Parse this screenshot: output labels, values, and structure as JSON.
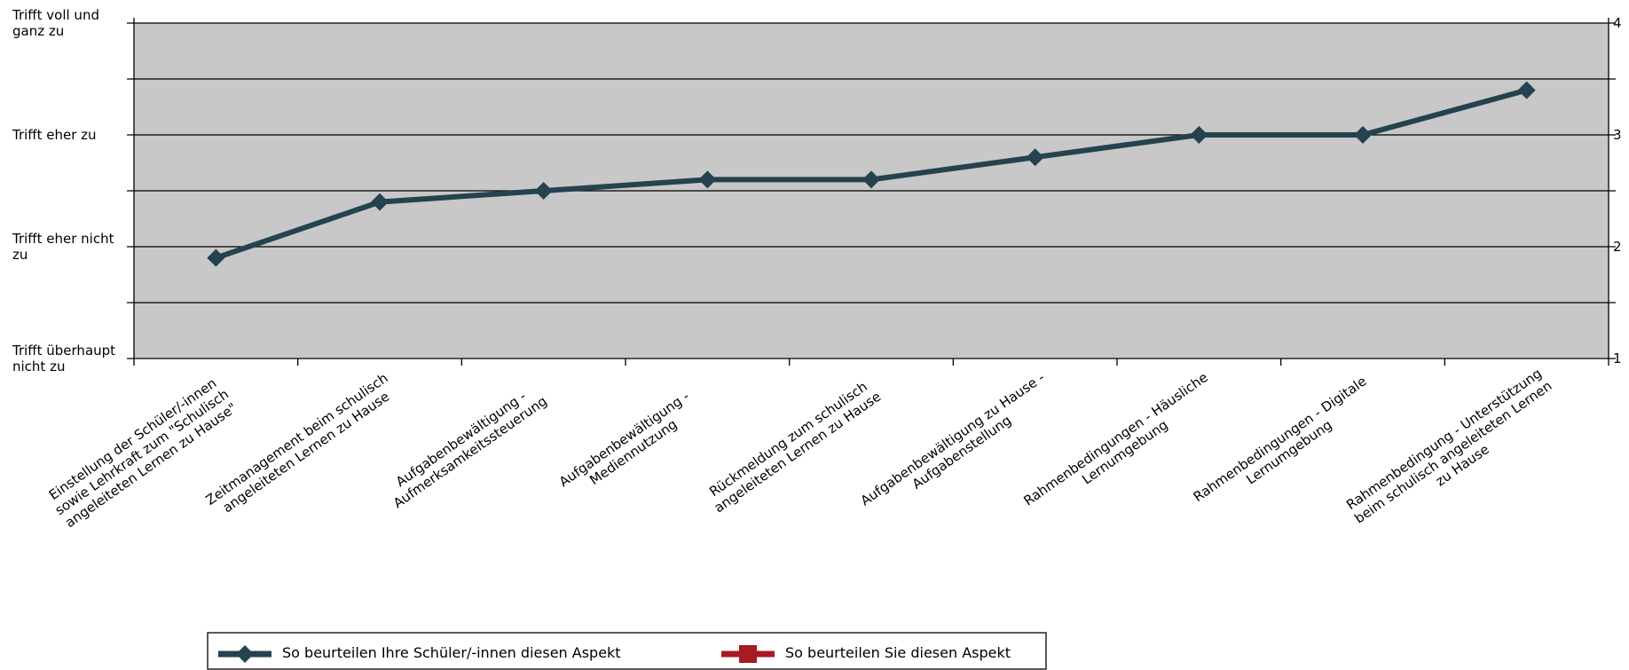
{
  "chart_data": {
    "type": "line",
    "categories": [
      "Einstellung der Schüler/-innen sowie Lehrkraft zum \"Schulisch angeleiteten Lernen zu Hause\"",
      "Zeitmanagement beim schulisch angeleiteten Lernen zu Hause",
      "Aufgabenbewältigung - Aufmerksamkeitssteuerung",
      "Aufgabenbewältigung - Mediennutzung",
      "Rückmeldung zum schulisch angeleiteten Lernen zu Hause",
      "Aufgabenbewältigung zu Hause - Aufgabenstellung",
      "Rahmenbedingungen - Häusliche Lernumgebung",
      "Rahmenbedingungen - Digitale Lernumgebung",
      "Rahmenbedingung - Unterstützung beim schulisch angeleiteten Lernen zu Hause"
    ],
    "series": [
      {
        "name": "So beurteilen Ihre Schüler/-innen diesen Aspekt",
        "color": "#24434f",
        "marker": "diamond",
        "values": [
          1.9,
          2.4,
          2.5,
          2.6,
          2.6,
          2.8,
          3.0,
          3.0,
          3.4
        ]
      },
      {
        "name": "So beurteilen Sie diesen Aspekt",
        "color": "#a51c24",
        "marker": "square",
        "values": [
          null,
          null,
          null,
          null,
          null,
          null,
          null,
          null,
          null
        ]
      }
    ],
    "ylim": [
      1,
      4
    ],
    "yticks": [
      {
        "value": 1,
        "label": "Trifft überhaupt nicht zu"
      },
      {
        "value": 2,
        "label": "Trifft eher nicht zu"
      },
      {
        "value": 3,
        "label": "Trifft eher zu"
      },
      {
        "value": 4,
        "label": "Trifft voll und ganz zu"
      }
    ],
    "minor_grid": [
      1.5,
      2.5,
      3.5
    ],
    "y2lim": [
      1,
      4
    ],
    "y2ticks": [
      1,
      2,
      3,
      4
    ],
    "grid": true,
    "plot_background": "#c8c8c8",
    "legend": "bottom"
  }
}
